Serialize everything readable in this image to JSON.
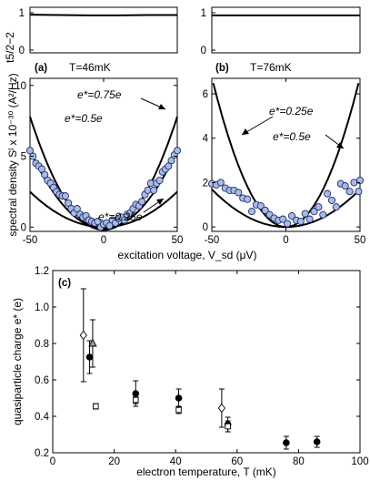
{
  "chart_data": [
    {
      "type": "line",
      "panel_label": "(a)",
      "temperature_label": "T=46mK",
      "ylabel": "t5/2−2",
      "ylim": [
        0,
        1
      ],
      "yticks": [
        "0",
        "1"
      ],
      "xlim": [
        -50,
        50
      ],
      "series": [
        {
          "x": [
            -50,
            -30,
            -10,
            0,
            10,
            30,
            50
          ],
          "y": [
            0.95,
            0.94,
            0.93,
            0.93,
            0.93,
            0.94,
            0.94
          ]
        }
      ]
    },
    {
      "type": "line",
      "panel_label": "(b)",
      "temperature_label": "T=76mK",
      "ylim": [
        0,
        1
      ],
      "yticks": [
        "0",
        "1"
      ],
      "xlim": [
        -50,
        50
      ],
      "series": [
        {
          "x": [
            -50,
            -30,
            -10,
            0,
            10,
            30,
            50
          ],
          "y": [
            0.93,
            0.93,
            0.93,
            0.93,
            0.93,
            0.93,
            0.93
          ]
        }
      ]
    },
    {
      "type": "scatter",
      "ylabel": "spectral density Sᴵ x 10⁻³⁰ (A²/Hz)",
      "xlabel": "excitation voltage, V_sd (μV)",
      "xlim": [
        -50,
        50
      ],
      "ylim": [
        -0.3,
        10.5
      ],
      "xticks": [
        "-50",
        "0",
        "50"
      ],
      "yticks": [
        "0",
        "5",
        "10"
      ],
      "annotations": [
        "e*=0.75e",
        "e*=0.5e",
        "e*=0.25e"
      ],
      "fits": [
        {
          "label": "e*=0.75e",
          "a": 0.0032,
          "c": -0.2
        },
        {
          "label": "e*=0.5e",
          "a": 0.0022,
          "c": -0.1
        },
        {
          "label": "e*=0.25e",
          "a": 0.001,
          "c": 0
        }
      ],
      "points": {
        "x": [
          -50,
          -48,
          -46,
          -44,
          -42,
          -40,
          -38,
          -36,
          -34,
          -32,
          -30,
          -28,
          -26,
          -24,
          -22,
          -20,
          -18,
          -16,
          -14,
          -12,
          -10,
          -8,
          -6,
          -4,
          -2,
          0,
          2,
          4,
          6,
          8,
          10,
          12,
          14,
          16,
          18,
          20,
          22,
          24,
          26,
          28,
          30,
          32,
          34,
          36,
          38,
          40,
          42,
          44,
          46,
          48,
          50
        ],
        "y": [
          5.4,
          5.0,
          4.5,
          4.3,
          4.1,
          3.7,
          3.3,
          3.1,
          2.8,
          2.5,
          2.3,
          2.2,
          2.2,
          1.7,
          1.3,
          1.0,
          1.3,
          0.9,
          0.7,
          0.8,
          0.5,
          0.4,
          0.3,
          0.4,
          0.0,
          0.2,
          0.3,
          0.1,
          0.5,
          0.3,
          0.6,
          0.7,
          0.5,
          0.9,
          1.0,
          1.3,
          1.6,
          1.5,
          1.8,
          2.3,
          2.6,
          3.1,
          2.6,
          3.1,
          3.3,
          3.9,
          4.1,
          4.3,
          4.7,
          5.1,
          5.4
        ]
      }
    },
    {
      "type": "scatter",
      "xlim": [
        -50,
        50
      ],
      "ylim": [
        -0.2,
        6.7
      ],
      "xticks": [
        "-50",
        "0",
        "50"
      ],
      "yticks": [
        "0",
        "2",
        "4",
        "6"
      ],
      "annotations": [
        "e*=0.25e",
        "e*=0.5e"
      ],
      "fits": [
        {
          "label": "e*=0.5e",
          "a": 0.0027,
          "c": 0
        },
        {
          "label": "e*=0.25e",
          "a": 0.00068,
          "c": 0
        }
      ],
      "points": {
        "x": [
          -50,
          -47,
          -44,
          -41,
          -38,
          -35,
          -32,
          -29,
          -26,
          -23,
          -20,
          -17,
          -14,
          -11,
          -8,
          -5,
          -2,
          1,
          4,
          7,
          10,
          13,
          16,
          19,
          22,
          25,
          28,
          31,
          34,
          37,
          40,
          43,
          46,
          49,
          50
        ],
        "y": [
          1.95,
          1.9,
          2.0,
          1.75,
          1.65,
          1.65,
          1.55,
          1.3,
          1.25,
          0.7,
          1.0,
          0.95,
          0.75,
          0.55,
          0.4,
          0.3,
          0.35,
          0.15,
          0.5,
          0.3,
          0.25,
          0.6,
          0.35,
          0.7,
          0.9,
          0.55,
          1.5,
          1.2,
          0.9,
          1.95,
          1.85,
          1.6,
          2.0,
          1.6,
          2.1
        ]
      }
    },
    {
      "type": "scatter",
      "panel_label": "(c)",
      "xlabel": "electron temperature, T (mK)",
      "ylabel": "quasiparticle charge e* (e)",
      "xlim": [
        0,
        100
      ],
      "ylim": [
        0.2,
        1.2
      ],
      "xticks": [
        "0",
        "20",
        "40",
        "60",
        "80",
        "100"
      ],
      "yticks": [
        "0.2",
        "0.4",
        "0.6",
        "0.8",
        "1.0",
        "1.2"
      ],
      "series": [
        {
          "marker": "filled-circle",
          "x": [
            12,
            27,
            41,
            57,
            76,
            86
          ],
          "y": [
            0.725,
            0.525,
            0.5,
            0.355,
            0.255,
            0.26
          ],
          "err": [
            0.09,
            0.07,
            0.05,
            0.04,
            0.035,
            0.03
          ]
        },
        {
          "marker": "open-square",
          "x": [
            14,
            27,
            41,
            57
          ],
          "y": [
            0.455,
            0.49,
            0.435,
            0.345
          ],
          "err": [
            0.015,
            0.02,
            0.02,
            0.03
          ]
        },
        {
          "marker": "open-diamond",
          "x": [
            10,
            55
          ],
          "y": [
            0.845,
            0.445
          ],
          "err": [
            0.255,
            0.105
          ]
        },
        {
          "marker": "gray-triangle",
          "x": [
            13
          ],
          "y": [
            0.8
          ],
          "err": [
            0.13
          ]
        }
      ]
    }
  ]
}
